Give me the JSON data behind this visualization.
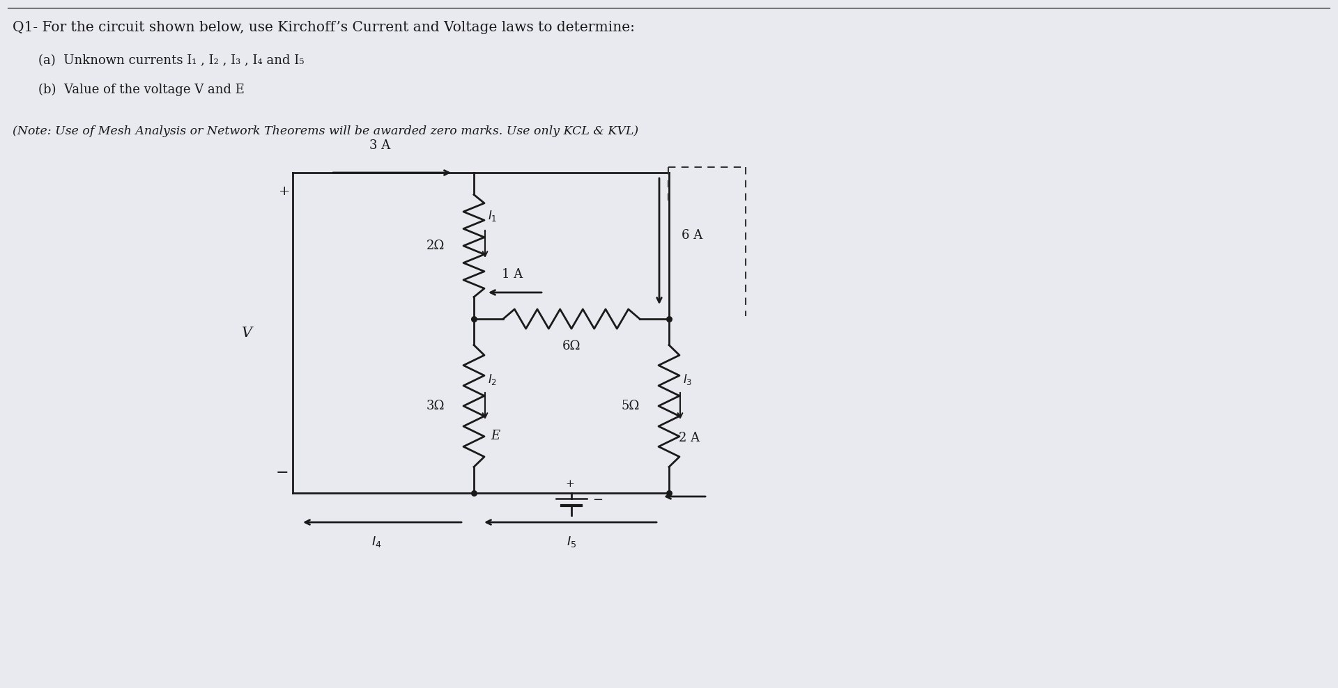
{
  "bg_color": "#e8eaf0",
  "title_line": "Q1- For the circuit shown below, use Kirchoff’s Current and Voltage laws to determine:",
  "sub_a": "(a)  Unknown currents I₁ , I₂ , I₃ , I₄ and I₅",
  "sub_b": "(b)  Value of the voltage V and E",
  "note": "(Note: Use of Mesh Analysis or Network Theorems will be awarded zero marks. Use only KCL & KVL)",
  "text_color": "#1a1a1a",
  "circuit_color": "#1a1a1a",
  "dashed_color": "#333333",
  "separator_color": "#777777",
  "figsize": [
    19.2,
    9.88
  ],
  "dpi": 100,
  "xL": 4.2,
  "xM": 6.8,
  "xR": 9.6,
  "xFR": 11.2,
  "yT": 7.4,
  "yMid": 5.3,
  "yB": 2.8
}
